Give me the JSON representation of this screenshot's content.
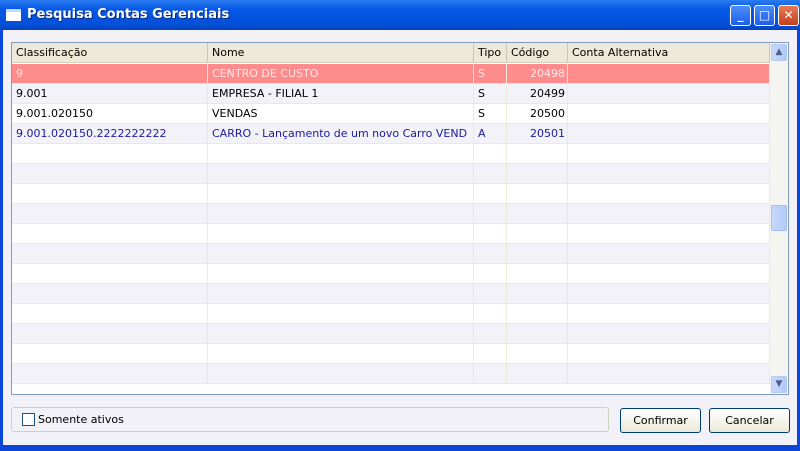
{
  "window": {
    "title": "Pesquisa Contas Gerenciais",
    "minimize": "_",
    "maximize": "□",
    "close": "✕"
  },
  "grid": {
    "columns": [
      "Classificação",
      "Nome",
      "Tipo",
      "Código",
      "Conta Alternativa"
    ],
    "rows": [
      {
        "classificacao": "9",
        "nome": "CENTRO DE CUSTO",
        "tipo": "S",
        "codigo": "20498",
        "conta_alternativa": "",
        "style": "selected"
      },
      {
        "classificacao": "9.001",
        "nome": "EMPRESA - FILIAL 1",
        "tipo": "S",
        "codigo": "20499",
        "conta_alternativa": "",
        "style": "normal"
      },
      {
        "classificacao": "9.001.020150",
        "nome": "VENDAS",
        "tipo": "S",
        "codigo": "20500",
        "conta_alternativa": "",
        "style": "normal"
      },
      {
        "classificacao": "9.001.020150.2222222222",
        "nome": "CARRO - Lançamento de um novo Carro VEND",
        "tipo": "A",
        "codigo": "20501",
        "conta_alternativa": "",
        "style": "analytic"
      }
    ],
    "colors": {
      "selected_bg": "#ff8c8c",
      "selected_text": "#ffe8e8",
      "analytic_text": "#1a1aa0"
    }
  },
  "footer": {
    "checkbox_label": "Somente ativos",
    "checkbox_checked": false,
    "confirm": "Confirmar",
    "cancel": "Cancelar"
  }
}
